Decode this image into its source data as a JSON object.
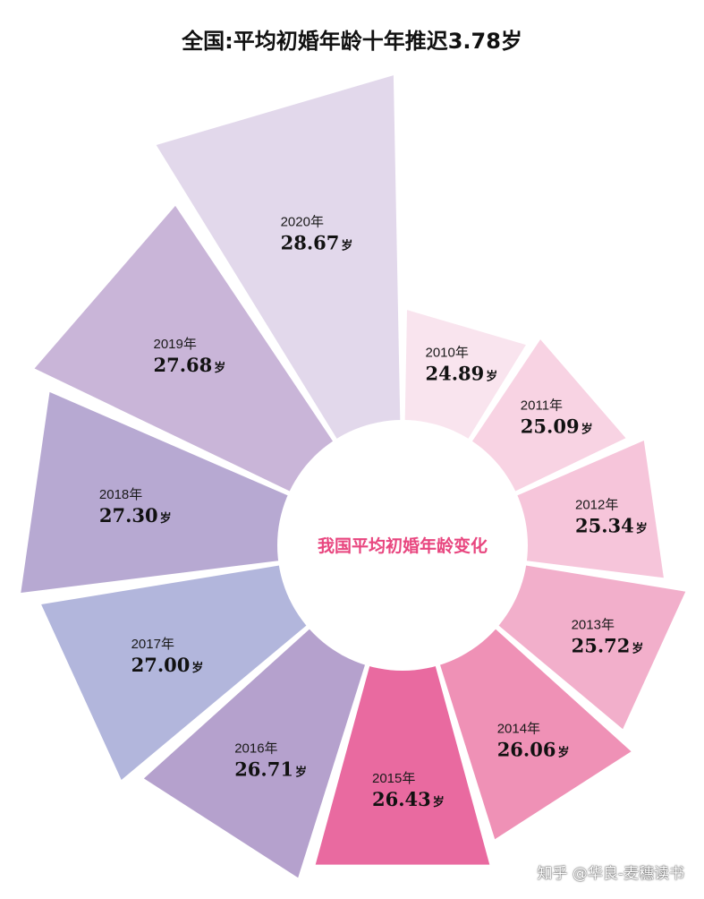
{
  "title": "全国:平均初婚年龄十年推迟3.78岁",
  "watermark": "知乎 @华良-麦穗读书",
  "chart_data": {
    "type": "polar-bar",
    "center_label": "我国平均初婚年龄变化",
    "unit": "岁",
    "categories": [
      "2010年",
      "2011年",
      "2012年",
      "2013年",
      "2014年",
      "2015年",
      "2016年",
      "2017年",
      "2018年",
      "2019年",
      "2020年"
    ],
    "values": [
      24.89,
      25.09,
      25.34,
      25.72,
      26.06,
      26.43,
      26.71,
      27.0,
      27.3,
      27.68,
      28.67
    ],
    "value_labels": [
      "24.89",
      "25.09",
      "25.34",
      "25.72",
      "26.06",
      "26.43",
      "26.71",
      "27.00",
      "27.30",
      "27.68",
      "28.67"
    ],
    "colors": [
      "#f9e4ee",
      "#f8d3e3",
      "#f6c5da",
      "#f2afcb",
      "#ef91b6",
      "#e96aa0",
      "#b5a1cd",
      "#b2b6dc",
      "#b7a9d2",
      "#c9b5d8",
      "#e2d8eb"
    ]
  }
}
